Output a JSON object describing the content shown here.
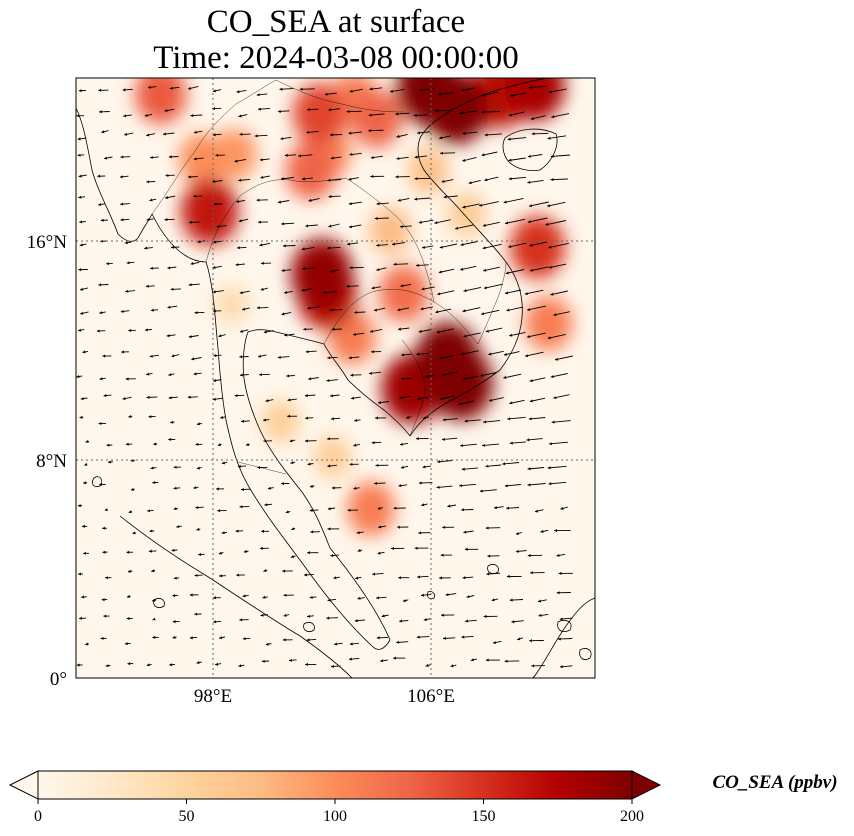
{
  "title": {
    "line1": "CO_SEA at surface",
    "line2": "Time: 2024-03-08 00:00:00"
  },
  "map": {
    "lon_range": [
      92,
      111
    ],
    "lat_range": [
      0,
      22
    ],
    "lon_ticks": [
      {
        "value": 98,
        "label": "98°E"
      },
      {
        "value": 106,
        "label": "106°E"
      }
    ],
    "lat_ticks": [
      {
        "value": 0,
        "label": "0°"
      },
      {
        "value": 8,
        "label": "8°N"
      },
      {
        "value": 16,
        "label": "16°N"
      }
    ],
    "gridlines": "dotted",
    "features": [
      "coastlines",
      "country borders",
      "wind vectors"
    ]
  },
  "colorbar": {
    "label": "CO_SEA (ppbv)",
    "min": 0,
    "max": 200,
    "ticks": [
      "0",
      "50",
      "100",
      "150",
      "200"
    ],
    "extend": "both",
    "colormap": "OrRd",
    "colors": [
      "#fff7ec",
      "#fee8c8",
      "#fdd49e",
      "#fdbb84",
      "#fc8d59",
      "#ef6548",
      "#d7301f",
      "#b30000",
      "#7f0000"
    ]
  },
  "chart_data": {
    "type": "heatmap",
    "variable": "CO_SEA at surface",
    "unit": "ppbv",
    "time": "2024-03-08 00:00:00",
    "hotspots": [
      {
        "lon": 106.1,
        "lat": 10.8,
        "value": 200
      },
      {
        "lon": 105.6,
        "lat": 11.7,
        "value": 200
      },
      {
        "lon": 104.3,
        "lat": 10.6,
        "value": 185
      },
      {
        "lon": 105.9,
        "lat": 20.9,
        "value": 200
      },
      {
        "lon": 104.9,
        "lat": 21.6,
        "value": 200
      },
      {
        "lon": 107.5,
        "lat": 21.4,
        "value": 170
      },
      {
        "lon": 108.8,
        "lat": 21.7,
        "value": 180
      },
      {
        "lon": 101.0,
        "lat": 14.8,
        "value": 190
      },
      {
        "lon": 101.2,
        "lat": 14.0,
        "value": 170
      },
      {
        "lon": 96.9,
        "lat": 17.1,
        "value": 165
      },
      {
        "lon": 97.7,
        "lat": 13.7,
        "value": 40
      },
      {
        "lon": 100.6,
        "lat": 18.6,
        "value": 125
      },
      {
        "lon": 101.2,
        "lat": 19.3,
        "value": 105
      },
      {
        "lon": 103.0,
        "lat": 20.5,
        "value": 125
      },
      {
        "lon": 102.2,
        "lat": 21.2,
        "value": 110
      },
      {
        "lon": 100.9,
        "lat": 20.7,
        "value": 140
      },
      {
        "lon": 95.1,
        "lat": 21.4,
        "value": 130
      },
      {
        "lon": 97.8,
        "lat": 19.2,
        "value": 95
      },
      {
        "lon": 96.6,
        "lat": 19.0,
        "value": 100
      },
      {
        "lon": 108.9,
        "lat": 15.8,
        "value": 150
      },
      {
        "lon": 109.3,
        "lat": 13.0,
        "value": 110
      },
      {
        "lon": 104.0,
        "lat": 14.1,
        "value": 120
      },
      {
        "lon": 102.1,
        "lat": 12.5,
        "value": 110
      },
      {
        "lon": 103.5,
        "lat": 16.4,
        "value": 75
      },
      {
        "lon": 102.8,
        "lat": 6.2,
        "value": 110
      },
      {
        "lon": 101.4,
        "lat": 8.1,
        "value": 55
      },
      {
        "lon": 99.5,
        "lat": 9.4,
        "value": 55
      },
      {
        "lon": 106.3,
        "lat": 17.0,
        "value": 60
      },
      {
        "lon": 104.9,
        "lat": 18.6,
        "value": 70
      }
    ]
  }
}
